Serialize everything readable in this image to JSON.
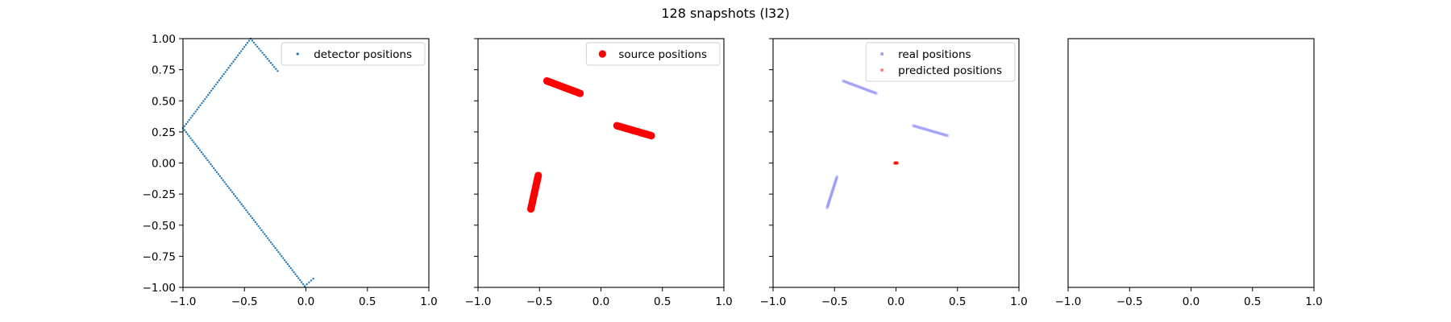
{
  "figure": {
    "title": "128 snapshots (l32)"
  },
  "chart_data": [
    {
      "type": "scatter",
      "xlim": [
        -1.0,
        1.0
      ],
      "ylim": [
        -1.0,
        1.0
      ],
      "x_ticks": [
        "−1.0",
        "−0.5",
        "0.0",
        "0.5",
        "1.0"
      ],
      "y_ticks": [
        "−1.00",
        "−0.75",
        "−0.50",
        "−0.25",
        "0.00",
        "0.25",
        "0.50",
        "0.75",
        "1.00"
      ],
      "y_tick_labels_visible": true,
      "legend_position": "top-right",
      "series": [
        {
          "name": "detector positions",
          "color": "#1f77b4",
          "marker_radius": 1.2,
          "opacity": 1.0,
          "segments": [
            {
              "from": [
                -1.0,
                0.28
              ],
              "to": [
                -0.45,
                1.0
              ],
              "count": 44
            },
            {
              "from": [
                -0.45,
                1.0
              ],
              "to": [
                -0.23,
                0.74
              ],
              "count": 17
            },
            {
              "from": [
                -1.0,
                0.28
              ],
              "to": [
                -0.01,
                -0.99
              ],
              "count": 80
            },
            {
              "from": [
                -0.01,
                -0.99
              ],
              "to": [
                0.06,
                -0.93
              ],
              "count": 5
            }
          ]
        }
      ]
    },
    {
      "type": "scatter",
      "xlim": [
        -1.0,
        1.0
      ],
      "ylim": [
        -1.0,
        1.0
      ],
      "x_ticks": [
        "−1.0",
        "−0.5",
        "0.0",
        "0.5",
        "1.0"
      ],
      "y_ticks": [
        "",
        "",
        "",
        "",
        "",
        "",
        "",
        "",
        ""
      ],
      "y_tick_labels_visible": false,
      "legend_position": "top-right",
      "series": [
        {
          "name": "source positions",
          "color": "#ff0000",
          "marker_radius": 4.6,
          "opacity": 1.0,
          "segments": [
            {
              "from": [
                -0.44,
                0.66
              ],
              "to": [
                -0.17,
                0.56
              ],
              "count": 30
            },
            {
              "from": [
                0.13,
                0.3
              ],
              "to": [
                0.41,
                0.22
              ],
              "count": 30
            },
            {
              "from": [
                -0.51,
                -0.1
              ],
              "to": [
                -0.57,
                -0.37
              ],
              "count": 30
            }
          ]
        }
      ]
    },
    {
      "type": "scatter",
      "xlim": [
        -1.0,
        1.0
      ],
      "ylim": [
        -1.0,
        1.0
      ],
      "x_ticks": [
        "−1.0",
        "−0.5",
        "0.0",
        "0.5",
        "1.0"
      ],
      "y_ticks": [
        "",
        "",
        "",
        "",
        "",
        "",
        "",
        "",
        ""
      ],
      "y_tick_labels_visible": false,
      "legend_position": "top-right",
      "series": [
        {
          "name": "real positions",
          "color": "#3a3aee",
          "marker_radius": 2.0,
          "opacity": 0.22,
          "segments": [
            {
              "from": [
                -0.43,
                0.66
              ],
              "to": [
                -0.16,
                0.56
              ],
              "count": 30
            },
            {
              "from": [
                0.14,
                0.3
              ],
              "to": [
                0.42,
                0.22
              ],
              "count": 30
            },
            {
              "from": [
                -0.48,
                -0.11
              ],
              "to": [
                -0.56,
                -0.36
              ],
              "count": 30
            }
          ]
        },
        {
          "name": "predicted positions",
          "color": "#ff0000",
          "marker_radius": 2.0,
          "opacity": 0.45,
          "segments": [
            {
              "from": [
                -0.01,
                0.0
              ],
              "to": [
                0.01,
                0.0
              ],
              "count": 8
            }
          ]
        }
      ]
    },
    {
      "type": "scatter",
      "xlim": [
        -1.0,
        1.0
      ],
      "ylim": [
        -1.0,
        1.0
      ],
      "x_ticks": [
        "−1.0",
        "−0.5",
        "0.0",
        "0.5",
        "1.0"
      ],
      "y_ticks": [],
      "y_tick_labels_visible": false,
      "legend_position": "",
      "series": []
    }
  ]
}
